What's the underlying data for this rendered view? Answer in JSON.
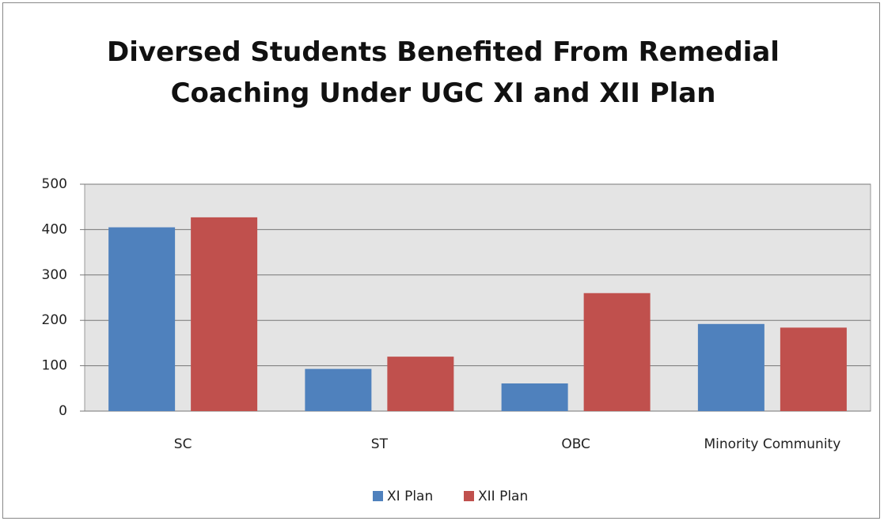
{
  "chart_data": {
    "type": "bar",
    "title": "Diversed Students Benefited From Remedial Coaching Under UGC XI and XII Plan",
    "categories": [
      "SC",
      "ST",
      "OBC",
      "Minority Community"
    ],
    "series": [
      {
        "name": "XI Plan",
        "color": "#4f81bd",
        "values": [
          405,
          93,
          61,
          192
        ]
      },
      {
        "name": "XII Plan",
        "color": "#c0504d",
        "values": [
          427,
          120,
          260,
          184
        ]
      }
    ],
    "ylim": [
      0,
      500
    ],
    "yticks": [
      0,
      100,
      200,
      300,
      400,
      500
    ],
    "grid": true,
    "legend": "bottom"
  }
}
